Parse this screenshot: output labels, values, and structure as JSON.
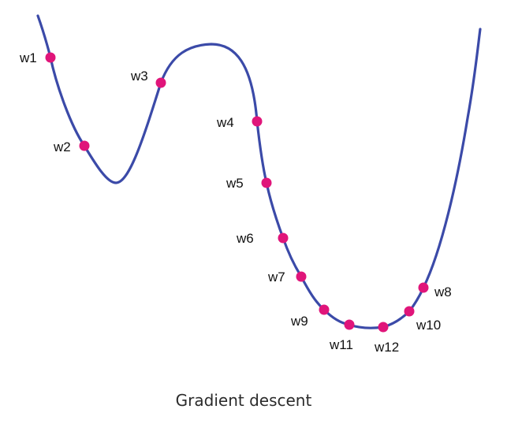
{
  "colors": {
    "curve": "#3b4aa8",
    "point": "#e0157a",
    "label": "#111111",
    "caption": "#2b2b2b"
  },
  "caption": "Gradient descent",
  "points": [
    {
      "id": "w1",
      "label": "w1"
    },
    {
      "id": "w2",
      "label": "w2"
    },
    {
      "id": "w3",
      "label": "w3"
    },
    {
      "id": "w4",
      "label": "w4"
    },
    {
      "id": "w5",
      "label": "w5"
    },
    {
      "id": "w6",
      "label": "w6"
    },
    {
      "id": "w7",
      "label": "w7"
    },
    {
      "id": "w8",
      "label": "w8"
    },
    {
      "id": "w9",
      "label": "w9"
    },
    {
      "id": "w10",
      "label": "w10"
    },
    {
      "id": "w11",
      "label": "w11"
    },
    {
      "id": "w12",
      "label": "w12"
    }
  ]
}
